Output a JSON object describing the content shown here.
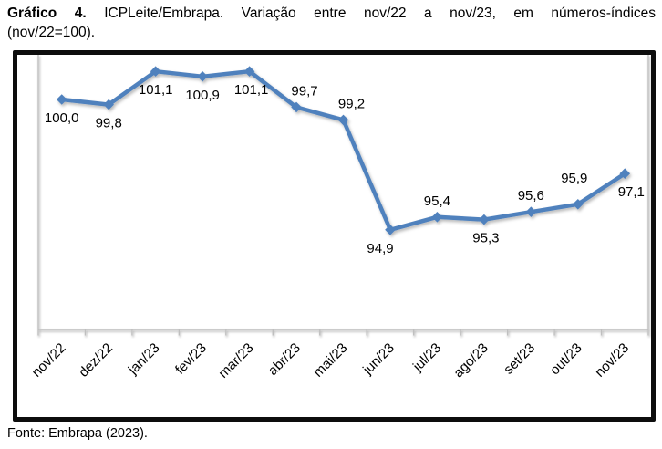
{
  "title": {
    "bold_prefix": "Gráfico 4.",
    "line1_rest": "ICPLeite/Embrapa. Variação entre nov/22 a nov/23, em números-índices",
    "line2": "(nov/22=100)."
  },
  "source": "Fonte: Embrapa (2023).",
  "chart_data": {
    "type": "line",
    "title": "ICPLeite/Embrapa — números-índices (nov/22=100)",
    "categories": [
      "nov/22",
      "dez/22",
      "jan/23",
      "fev/23",
      "mar/23",
      "abr/23",
      "mai/23",
      "jun/23",
      "jul/23",
      "ago/23",
      "set/23",
      "out/23",
      "nov/23"
    ],
    "values": [
      100.0,
      99.8,
      101.1,
      100.9,
      101.1,
      99.7,
      99.2,
      94.9,
      95.4,
      95.3,
      95.6,
      95.9,
      97.1
    ],
    "point_labels": [
      "100,0",
      "99,8",
      "101,1",
      "100,9",
      "101,1",
      "99,7",
      "99,2",
      "94,9",
      "95,4",
      "95,3",
      "95,6",
      "95,9",
      "97,1"
    ],
    "label_positions": [
      "below",
      "below",
      "below",
      "below",
      "below",
      "above",
      "above",
      "below",
      "above",
      "below",
      "above",
      "above",
      "below"
    ],
    "label_dx": [
      0,
      0,
      0,
      0,
      2,
      9,
      9,
      -11,
      0,
      2,
      0,
      -4,
      7
    ],
    "label_dy": [
      0,
      0,
      0,
      0,
      0,
      0,
      0,
      0,
      0,
      0,
      0,
      -11,
      0
    ],
    "xlabel": "",
    "ylabel": "",
    "ylim": [
      91,
      102
    ],
    "gridlines": false,
    "legend": "none",
    "marker": "diamond",
    "series_color": "#4F81BD",
    "axis_color": "#BFBFBF",
    "label_color": "#000000"
  }
}
